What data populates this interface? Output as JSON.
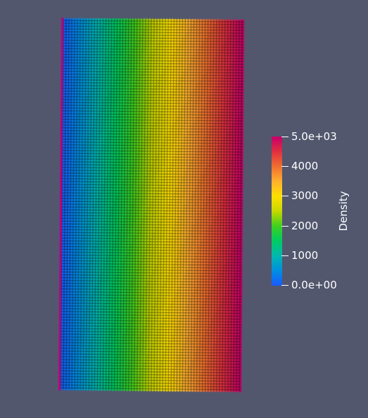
{
  "colorbar": {
    "title": "Density",
    "ticks": [
      {
        "label": "5.0e+03",
        "value": 5000
      },
      {
        "label": "4000",
        "value": 4000
      },
      {
        "label": "3000",
        "value": 3000
      },
      {
        "label": "2000",
        "value": 2000
      },
      {
        "label": "1000",
        "value": 1000
      },
      {
        "label": "0.0e+00",
        "value": 0
      }
    ],
    "range": [
      0,
      5000
    ],
    "colormap": "rainbow",
    "colors": [
      "#1a5cff",
      "#0090e0",
      "#00b8b0",
      "#00cc60",
      "#40d020",
      "#c8d800",
      "#ffe000",
      "#ffb030",
      "#f07030",
      "#e03040",
      "#c8006a"
    ]
  },
  "mesh": {
    "field": "Density",
    "gradient_direction": "horizontal",
    "min_value": 0,
    "max_value": 5000
  }
}
